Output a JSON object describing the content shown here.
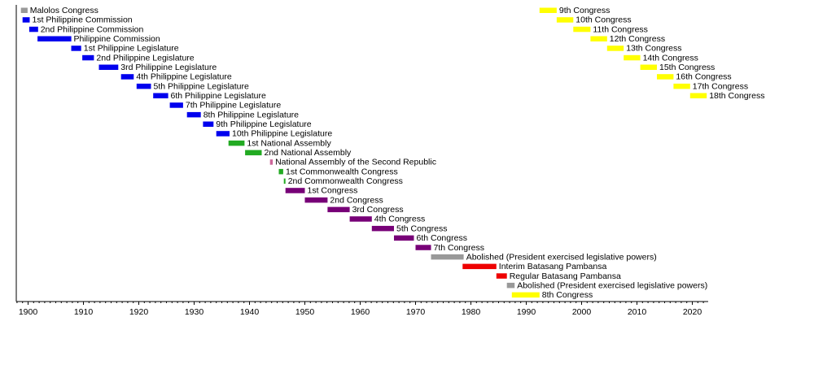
{
  "chart_data": {
    "type": "timeline",
    "title": "",
    "xlabel": "",
    "ylabel": "",
    "xlim": [
      1898,
      2023
    ],
    "x_ticks": [
      1900,
      1910,
      1920,
      1930,
      1940,
      1950,
      1960,
      1970,
      1980,
      1990,
      2000,
      2010,
      2020
    ],
    "colors": {
      "gray": "#999999",
      "blue": "#0000ee",
      "green": "#22aa22",
      "pink": "#cc6699",
      "purple": "#770077",
      "red": "#ee0000",
      "yellow": "#ffff00"
    },
    "series": [
      {
        "name": "Malolos Congress",
        "start": 1898.7,
        "end": 1899.9,
        "color": "gray",
        "row": 0
      },
      {
        "name": "1st Philippine Commission",
        "start": 1899.0,
        "end": 1900.3,
        "color": "blue",
        "row": 1
      },
      {
        "name": "2nd Philippine Commission",
        "start": 1900.2,
        "end": 1901.8,
        "color": "blue",
        "row": 2
      },
      {
        "name": "Philippine Commission",
        "start": 1901.7,
        "end": 1907.8,
        "color": "blue",
        "row": 3
      },
      {
        "name": "1st Philippine Legislature",
        "start": 1907.8,
        "end": 1909.6,
        "color": "blue",
        "row": 4
      },
      {
        "name": "2nd Philippine Legislature",
        "start": 1909.8,
        "end": 1911.9,
        "color": "blue",
        "row": 5
      },
      {
        "name": "3rd Philippine Legislature",
        "start": 1912.8,
        "end": 1916.3,
        "color": "blue",
        "row": 6
      },
      {
        "name": "4th Philippine Legislature",
        "start": 1916.8,
        "end": 1919.1,
        "color": "blue",
        "row": 7
      },
      {
        "name": "5th Philippine Legislature",
        "start": 1919.6,
        "end": 1922.2,
        "color": "blue",
        "row": 8
      },
      {
        "name": "6th Philippine Legislature",
        "start": 1922.6,
        "end": 1925.3,
        "color": "blue",
        "row": 9
      },
      {
        "name": "7th Philippine Legislature",
        "start": 1925.6,
        "end": 1928.0,
        "color": "blue",
        "row": 10
      },
      {
        "name": "8th Philippine Legislature",
        "start": 1928.7,
        "end": 1931.2,
        "color": "blue",
        "row": 11
      },
      {
        "name": "9th Philippine Legislature",
        "start": 1931.6,
        "end": 1933.5,
        "color": "blue",
        "row": 12
      },
      {
        "name": "10th Philippine Legislature",
        "start": 1934.0,
        "end": 1936.4,
        "color": "blue",
        "row": 13
      },
      {
        "name": "1st National Assembly",
        "start": 1936.2,
        "end": 1939.1,
        "color": "green",
        "row": 14
      },
      {
        "name": "2nd National Assembly",
        "start": 1939.2,
        "end": 1942.2,
        "color": "green",
        "row": 15
      },
      {
        "name": "National Assembly of the Second Republic",
        "start": 1943.7,
        "end": 1944.2,
        "color": "pink",
        "row": 16
      },
      {
        "name": "1st Commonwealth Congress",
        "start": 1945.3,
        "end": 1946.1,
        "color": "green",
        "row": 17
      },
      {
        "name": "2nd Commonwealth Congress",
        "start": 1946.2,
        "end": 1946.5,
        "color": "green",
        "row": 18
      },
      {
        "name": "1st Congress",
        "start": 1946.5,
        "end": 1950.0,
        "color": "purple",
        "row": 19
      },
      {
        "name": "2nd Congress",
        "start": 1950.0,
        "end": 1954.1,
        "color": "purple",
        "row": 20
      },
      {
        "name": "3rd Congress",
        "start": 1954.1,
        "end": 1958.1,
        "color": "purple",
        "row": 21
      },
      {
        "name": "4th Congress",
        "start": 1958.1,
        "end": 1962.1,
        "color": "purple",
        "row": 22
      },
      {
        "name": "5th Congress",
        "start": 1962.1,
        "end": 1966.1,
        "color": "purple",
        "row": 23
      },
      {
        "name": "6th Congress",
        "start": 1966.1,
        "end": 1969.7,
        "color": "purple",
        "row": 24
      },
      {
        "name": "7th Congress",
        "start": 1970.0,
        "end": 1972.8,
        "color": "purple",
        "row": 25
      },
      {
        "name": "Abolished (President exercised legislative powers)",
        "start": 1972.8,
        "end": 1978.7,
        "color": "gray",
        "row": 26
      },
      {
        "name": "Interim Batasang Pambansa",
        "start": 1978.5,
        "end": 1984.6,
        "color": "red",
        "row": 27
      },
      {
        "name": "Regular Batasang Pambansa",
        "start": 1984.6,
        "end": 1986.5,
        "color": "red",
        "row": 28
      },
      {
        "name": "Abolished (President exercised legislative powers)",
        "start": 1986.5,
        "end": 1987.9,
        "color": "gray",
        "row": 29
      },
      {
        "name": "8th Congress",
        "start": 1987.4,
        "end": 1992.4,
        "color": "yellow",
        "row": 30
      },
      {
        "name": "9th Congress",
        "start": 1992.4,
        "end": 1995.5,
        "color": "yellow",
        "row": 0
      },
      {
        "name": "10th Congress",
        "start": 1995.5,
        "end": 1998.5,
        "color": "yellow",
        "row": 1
      },
      {
        "name": "11th Congress",
        "start": 1998.5,
        "end": 2001.6,
        "color": "yellow",
        "row": 2
      },
      {
        "name": "12th Congress",
        "start": 2001.6,
        "end": 2004.6,
        "color": "yellow",
        "row": 3
      },
      {
        "name": "13th Congress",
        "start": 2004.6,
        "end": 2007.6,
        "color": "yellow",
        "row": 4
      },
      {
        "name": "14th Congress",
        "start": 2007.6,
        "end": 2010.6,
        "color": "yellow",
        "row": 5
      },
      {
        "name": "15th Congress",
        "start": 2010.6,
        "end": 2013.6,
        "color": "yellow",
        "row": 6
      },
      {
        "name": "16th Congress",
        "start": 2013.6,
        "end": 2016.6,
        "color": "yellow",
        "row": 7
      },
      {
        "name": "17th Congress",
        "start": 2016.6,
        "end": 2019.6,
        "color": "yellow",
        "row": 8
      },
      {
        "name": "18th Congress",
        "start": 2019.6,
        "end": 2022.6,
        "color": "yellow",
        "row": 9
      }
    ]
  }
}
